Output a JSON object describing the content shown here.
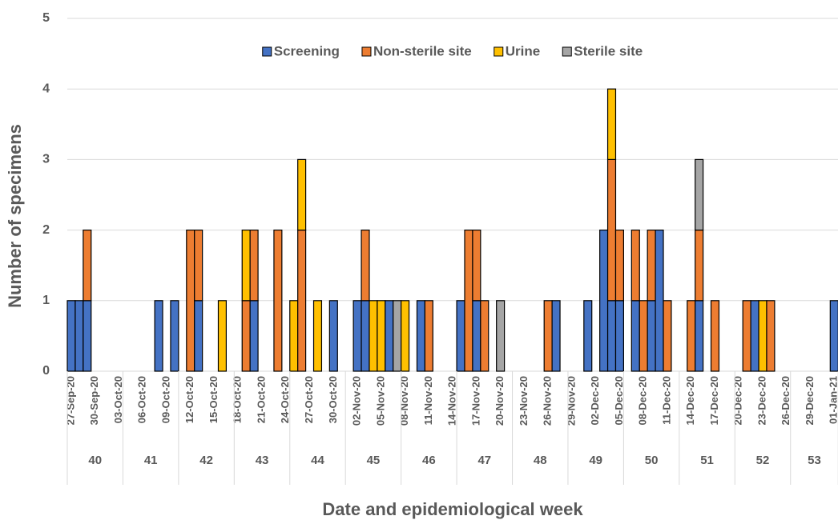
{
  "chart_data": {
    "type": "stacked-bar",
    "x_label": "Date and epidemiological week",
    "y_label": "Number of specimens",
    "categories": [
      "27-Sep-20",
      null,
      null,
      "30-Sep-20",
      null,
      null,
      "03-Oct-20",
      null,
      null,
      "06-Oct-20",
      null,
      null,
      "09-Oct-20",
      null,
      null,
      "12-Oct-20",
      null,
      null,
      "15-Oct-20",
      null,
      null,
      "18-Oct-20",
      null,
      null,
      "21-Oct-20",
      null,
      null,
      "24-Oct-20",
      null,
      null,
      "27-Oct-20",
      null,
      null,
      "30-Oct-20",
      null,
      null,
      "02-Nov-20",
      null,
      null,
      "05-Nov-20",
      null,
      null,
      "08-Nov-20",
      null,
      null,
      "11-Nov-20",
      null,
      null,
      "14-Nov-20",
      null,
      null,
      "17-Nov-20",
      null,
      null,
      "20-Nov-20",
      null,
      null,
      "23-Nov-20",
      null,
      null,
      "26-Nov-20",
      null,
      null,
      "29-Nov-20",
      null,
      null,
      "02-Dec-20",
      null,
      null,
      "05-Dec-20",
      null,
      null,
      "08-Dec-20",
      null,
      null,
      "11-Dec-20",
      null,
      null,
      "14-Dec-20",
      null,
      null,
      "17-Dec-20",
      null,
      null,
      "20-Dec-20",
      null,
      null,
      "23-Dec-20",
      null,
      null,
      "26-Dec-20",
      null,
      null,
      "29-Dec-20",
      null,
      null,
      "01-Jan-21"
    ],
    "weeks": [
      "40",
      "41",
      "42",
      "43",
      "44",
      "45",
      "46",
      "47",
      "48",
      "49",
      "50",
      "51",
      "52",
      "53"
    ],
    "series": [
      {
        "name": "Screening",
        "color": "#4472C4",
        "values": [
          1,
          1,
          1,
          0,
          0,
          0,
          0,
          0,
          0,
          0,
          0,
          1,
          0,
          1,
          0,
          0,
          1,
          0,
          0,
          0,
          0,
          0,
          0,
          1,
          0,
          0,
          0,
          0,
          0,
          0,
          0,
          0,
          0,
          1,
          0,
          0,
          1,
          1,
          0,
          0,
          1,
          0,
          0,
          0,
          1,
          0,
          0,
          0,
          0,
          1,
          0,
          1,
          0,
          0,
          0,
          0,
          0,
          0,
          0,
          0,
          0,
          1,
          0,
          0,
          0,
          1,
          0,
          2,
          1,
          1,
          0,
          1,
          0,
          1,
          2,
          0,
          0,
          0,
          0,
          1,
          0,
          0,
          0,
          0,
          0,
          0,
          1,
          0,
          0,
          0,
          0,
          0,
          0,
          0,
          0,
          0,
          1
        ]
      },
      {
        "name": "Non-sterile site",
        "color": "#ED7D31",
        "values": [
          0,
          0,
          1,
          0,
          0,
          0,
          0,
          0,
          0,
          0,
          0,
          0,
          0,
          0,
          0,
          2,
          1,
          0,
          0,
          0,
          0,
          0,
          1,
          1,
          0,
          0,
          2,
          0,
          0,
          2,
          0,
          0,
          0,
          0,
          0,
          0,
          0,
          1,
          0,
          0,
          0,
          0,
          0,
          0,
          0,
          1,
          0,
          0,
          0,
          0,
          2,
          1,
          1,
          0,
          0,
          0,
          0,
          0,
          0,
          0,
          1,
          0,
          0,
          0,
          0,
          0,
          0,
          0,
          2,
          1,
          0,
          1,
          1,
          1,
          0,
          1,
          0,
          0,
          1,
          1,
          0,
          1,
          0,
          0,
          0,
          1,
          0,
          0,
          1,
          0,
          0,
          0,
          0,
          0,
          0,
          0,
          0
        ]
      },
      {
        "name": "Urine",
        "color": "#FFC000",
        "values": [
          0,
          0,
          0,
          0,
          0,
          0,
          0,
          0,
          0,
          0,
          0,
          0,
          0,
          0,
          0,
          0,
          0,
          0,
          0,
          1,
          0,
          0,
          1,
          0,
          0,
          0,
          0,
          0,
          1,
          1,
          0,
          1,
          0,
          0,
          0,
          0,
          0,
          0,
          1,
          1,
          0,
          0,
          1,
          0,
          0,
          0,
          0,
          0,
          0,
          0,
          0,
          0,
          0,
          0,
          0,
          0,
          0,
          0,
          0,
          0,
          0,
          0,
          0,
          0,
          0,
          0,
          0,
          0,
          1,
          0,
          0,
          0,
          0,
          0,
          0,
          0,
          0,
          0,
          0,
          0,
          0,
          0,
          0,
          0,
          0,
          0,
          0,
          1,
          0,
          0,
          0,
          0,
          0,
          0,
          0,
          0,
          0
        ]
      },
      {
        "name": "Sterile site",
        "color": "#A5A5A5",
        "values": [
          0,
          0,
          0,
          0,
          0,
          0,
          0,
          0,
          0,
          0,
          0,
          0,
          0,
          0,
          0,
          0,
          0,
          0,
          0,
          0,
          0,
          0,
          0,
          0,
          0,
          0,
          0,
          0,
          0,
          0,
          0,
          0,
          0,
          0,
          0,
          0,
          0,
          0,
          0,
          0,
          0,
          1,
          0,
          0,
          0,
          0,
          0,
          0,
          0,
          0,
          0,
          0,
          0,
          0,
          1,
          0,
          0,
          0,
          0,
          0,
          0,
          0,
          0,
          0,
          0,
          0,
          0,
          0,
          0,
          0,
          0,
          0,
          0,
          0,
          0,
          0,
          0,
          0,
          0,
          1,
          0,
          0,
          0,
          0,
          0,
          0,
          0,
          0,
          0,
          0,
          0,
          0,
          0,
          0,
          0,
          0,
          0
        ]
      }
    ],
    "ylim": [
      0,
      5
    ],
    "yticks": [
      0,
      1,
      2,
      3,
      4,
      5
    ],
    "grid": true,
    "legend": "top"
  }
}
